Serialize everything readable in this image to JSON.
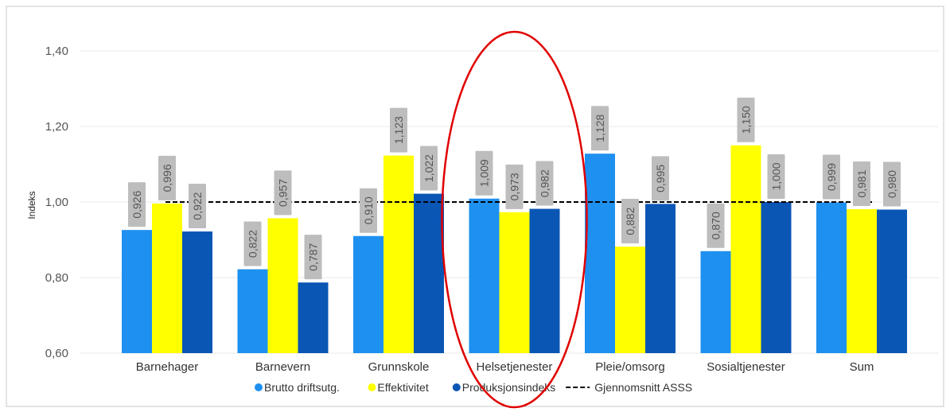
{
  "chart_data": {
    "type": "bar",
    "ylabel": "Indeks",
    "xlabel": "",
    "ylim": [
      0.6,
      1.45
    ],
    "yticks": [
      "0,60",
      "0,80",
      "1,00",
      "1,20",
      "1,40"
    ],
    "yticks_values": [
      0.6,
      0.8,
      1.0,
      1.2,
      1.4
    ],
    "grid": true,
    "legend_position": "bottom",
    "categories": [
      "Barnehager",
      "Barnevern",
      "Grunnskole",
      "Helsetjenester",
      "Pleie/omsorg",
      "Sosialtjenester",
      "Sum"
    ],
    "series": [
      {
        "name": "Brutto driftsutg.",
        "color": "#1e90f0",
        "values": [
          0.926,
          0.822,
          0.91,
          1.009,
          1.128,
          0.87,
          0.999
        ],
        "labels": [
          "0,926",
          "0,822",
          "0,910",
          "1,009",
          "1,128",
          "0,870",
          "0,999"
        ]
      },
      {
        "name": "Effektivitet",
        "color": "#ffff00",
        "values": [
          0.996,
          0.957,
          1.123,
          0.973,
          0.882,
          1.15,
          0.981
        ],
        "labels": [
          "0,996",
          "0,957",
          "1,123",
          "0,973",
          "0,882",
          "1,150",
          "0,981"
        ]
      },
      {
        "name": "Produksjonsindeks",
        "color": "#0a56b4",
        "values": [
          0.922,
          0.787,
          1.022,
          0.982,
          0.995,
          1.0,
          0.98
        ],
        "labels": [
          "0,922",
          "0,787",
          "1,022",
          "0,982",
          "0,995",
          "1,000",
          "0,980"
        ]
      }
    ],
    "reference_line": {
      "name": "Gjennomsnitt ASSS",
      "value": 1.0,
      "style": "dashed",
      "color": "#000000"
    },
    "annotation": {
      "shape": "ellipse",
      "color": "#e00000",
      "highlighted_category": "Helsetjenester"
    }
  }
}
